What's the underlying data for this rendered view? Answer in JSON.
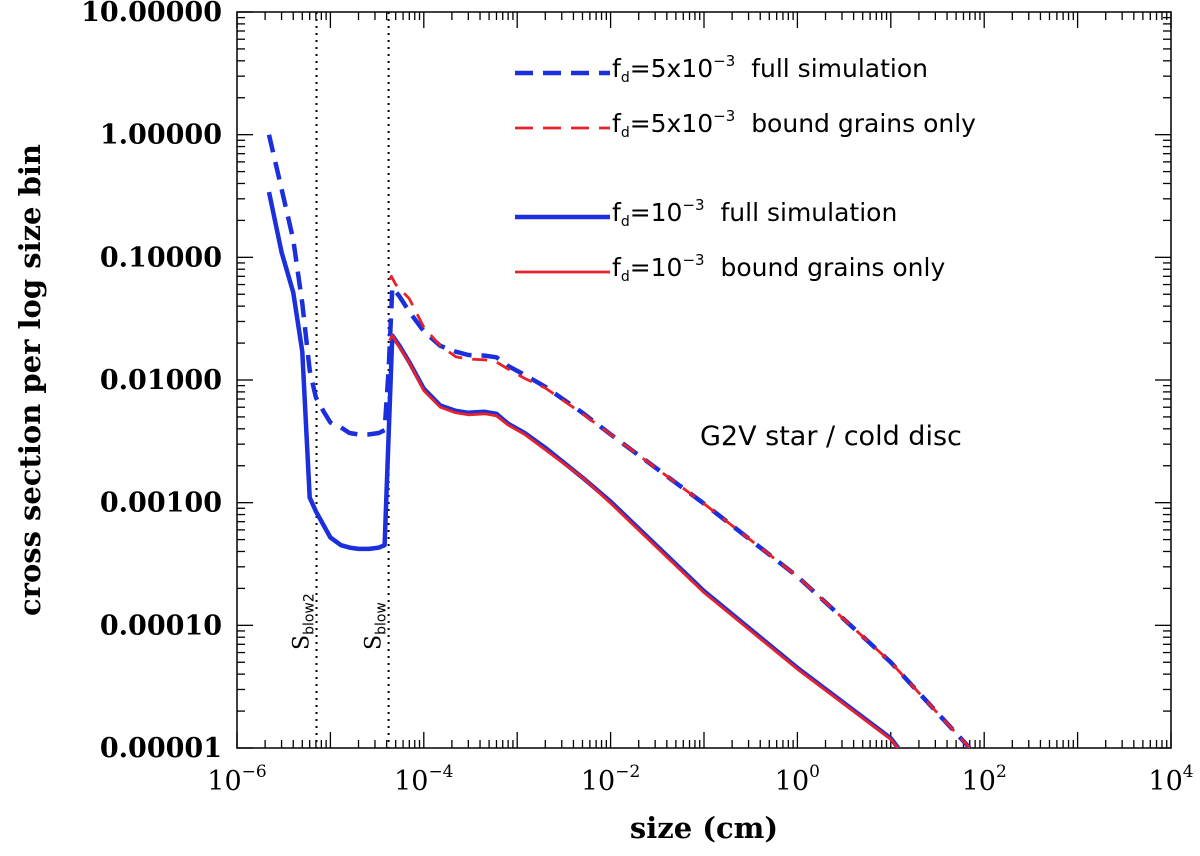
{
  "chart_data": {
    "type": "line",
    "title": "",
    "xlabel": "size (cm)",
    "ylabel": "cross section per log size bin",
    "xscale": "log",
    "yscale": "log",
    "xlim": [
      1e-06,
      10000.0
    ],
    "ylim": [
      1e-05,
      10
    ],
    "x_ticks": [
      {
        "value": 1e-06,
        "base": "10",
        "exp": "−6"
      },
      {
        "value": 0.0001,
        "base": "10",
        "exp": "−4"
      },
      {
        "value": 0.01,
        "base": "10",
        "exp": "−2"
      },
      {
        "value": 1,
        "base": "10",
        "exp": "0"
      },
      {
        "value": 100,
        "base": "10",
        "exp": "2"
      },
      {
        "value": 10000,
        "base": "10",
        "exp": "4"
      }
    ],
    "y_ticks": [
      {
        "value": 10,
        "label": "10.00000"
      },
      {
        "value": 1,
        "label": "1.00000"
      },
      {
        "value": 0.1,
        "label": "0.10000"
      },
      {
        "value": 0.01,
        "label": "0.01000"
      },
      {
        "value": 0.001,
        "label": "0.00100"
      },
      {
        "value": 0.0001,
        "label": "0.00010"
      },
      {
        "value": 1e-05,
        "label": "0.00001"
      }
    ],
    "annotation": "G2V star / cold disc",
    "vlines": [
      {
        "x": 7.1e-06,
        "base": "S",
        "sub": "blow2"
      },
      {
        "x": 4.2e-05,
        "base": "S",
        "sub": "blow"
      }
    ],
    "legend_position": "top-right",
    "series": [
      {
        "name": "f_d=5x10^-3 full simulation",
        "legend_pre": "f",
        "legend_sub": "d",
        "legend_mid": "=5x10",
        "legend_sup": "−3",
        "legend_post": "full simulation",
        "color": "#1b2fdc",
        "style": "dashed",
        "width": 4.5,
        "x": [
          2.2e-06,
          3e-06,
          4e-06,
          5e-06,
          6e-06,
          7e-06,
          8.5e-06,
          1e-05,
          1.3e-05,
          1.6e-05,
          2e-05,
          2.6e-05,
          3.3e-05,
          3.8e-05,
          4.2e-05,
          4.6e-05,
          5.5e-05,
          7e-05,
          0.0001,
          0.00015,
          0.00022,
          0.0003,
          0.00045,
          0.0006,
          0.0008,
          0.0012,
          0.002,
          0.005,
          0.01,
          0.1,
          1.0,
          10.0,
          70.0
        ],
        "y": [
          1.0,
          0.36,
          0.14,
          0.042,
          0.012,
          0.0072,
          0.0055,
          0.0045,
          0.0041,
          0.0037,
          0.0036,
          0.0036,
          0.0037,
          0.0039,
          0.012,
          0.057,
          0.048,
          0.036,
          0.025,
          0.019,
          0.017,
          0.016,
          0.0158,
          0.0153,
          0.013,
          0.011,
          0.0088,
          0.0054,
          0.0036,
          0.00098,
          0.00025,
          5e-05,
          1e-05
        ]
      },
      {
        "name": "f_d=5x10^-3 bound grains only",
        "legend_pre": "f",
        "legend_sub": "d",
        "legend_mid": "=5x10",
        "legend_sup": "−3",
        "legend_post": "bound grains only",
        "color": "#e8222a",
        "style": "dashed",
        "width": 2.8,
        "x": [
          4.3e-05,
          4.5e-05,
          5e-05,
          7e-05,
          0.0001,
          0.00015,
          0.00022,
          0.0003,
          0.00045,
          0.0006,
          0.0008,
          0.0012,
          0.002,
          0.005,
          0.01,
          0.1,
          1.0,
          10.0,
          70.0
        ],
        "y": [
          0.066,
          0.07,
          0.06,
          0.046,
          0.027,
          0.019,
          0.0155,
          0.0148,
          0.0146,
          0.014,
          0.0123,
          0.0103,
          0.0086,
          0.0053,
          0.0036,
          0.00098,
          0.00025,
          5e-05,
          1e-05
        ]
      },
      {
        "name": "f_d=10^-3 full simulation",
        "legend_pre": "f",
        "legend_sub": "d",
        "legend_mid": "=10",
        "legend_sup": "−3",
        "legend_post": "full simulation",
        "color": "#1b2fdc",
        "style": "solid",
        "width": 4.5,
        "x": [
          2.2e-06,
          3e-06,
          4e-06,
          5e-06,
          6e-06,
          7e-06,
          8.5e-06,
          1e-05,
          1.3e-05,
          1.6e-05,
          2e-05,
          2.6e-05,
          3.3e-05,
          3.8e-05,
          4.2e-05,
          4.6e-05,
          5.5e-05,
          7e-05,
          0.0001,
          0.00015,
          0.00022,
          0.0003,
          0.00045,
          0.0006,
          0.0008,
          0.0012,
          0.002,
          0.005,
          0.01,
          0.1,
          1.0,
          10.0,
          12.0
        ],
        "y": [
          0.34,
          0.11,
          0.052,
          0.017,
          0.0011,
          0.00085,
          0.00065,
          0.00052,
          0.00045,
          0.00043,
          0.00042,
          0.00042,
          0.00043,
          0.00045,
          0.0035,
          0.023,
          0.019,
          0.014,
          0.0085,
          0.0062,
          0.0056,
          0.0054,
          0.0055,
          0.0053,
          0.0044,
          0.0037,
          0.0028,
          0.0016,
          0.00102,
          0.00019,
          4.5e-05,
          1.2e-05,
          1e-05
        ]
      },
      {
        "name": "f_d=10^-3 bound grains only",
        "legend_pre": "f",
        "legend_sub": "d",
        "legend_mid": "=10",
        "legend_sup": "−3",
        "legend_post": "bound grains only",
        "color": "#e8222a",
        "style": "solid",
        "width": 2.8,
        "x": [
          4.3e-05,
          4.6e-05,
          5.5e-05,
          7e-05,
          0.0001,
          0.00015,
          0.00022,
          0.0003,
          0.00045,
          0.0006,
          0.0008,
          0.0012,
          0.002,
          0.005,
          0.01,
          0.1,
          1.0,
          10.0,
          12.0
        ],
        "y": [
          0.021,
          0.023,
          0.0185,
          0.0138,
          0.0082,
          0.006,
          0.0054,
          0.0052,
          0.0053,
          0.0051,
          0.0043,
          0.0036,
          0.0027,
          0.0016,
          0.00099,
          0.000185,
          4.4e-05,
          1.18e-05,
          9.9e-06
        ]
      }
    ]
  }
}
